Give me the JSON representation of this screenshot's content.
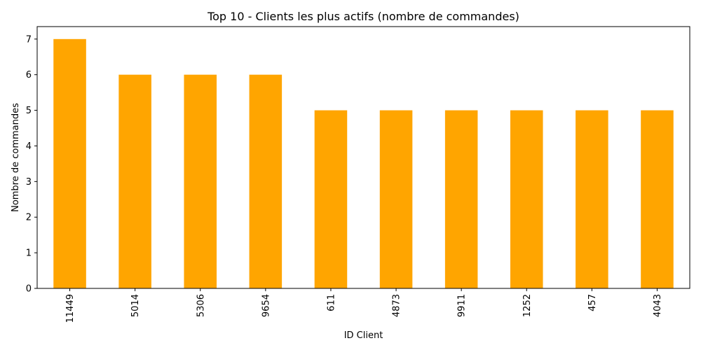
{
  "chart_data": {
    "type": "bar",
    "title": "Top 10 - Clients les plus actifs (nombre de commandes)",
    "xlabel": "ID Client",
    "ylabel": "Nombre de commandes",
    "categories": [
      "11449",
      "5014",
      "5306",
      "9654",
      "611",
      "4873",
      "9911",
      "1252",
      "457",
      "4043"
    ],
    "values": [
      7,
      6,
      6,
      6,
      5,
      5,
      5,
      5,
      5,
      5
    ],
    "ylim": [
      0,
      7.35
    ],
    "yticks": [
      0,
      1,
      2,
      3,
      4,
      5,
      6,
      7
    ],
    "grid": false,
    "legend": "none",
    "bar_color": "#FFA500",
    "x_tick_rotation": "vertical"
  }
}
